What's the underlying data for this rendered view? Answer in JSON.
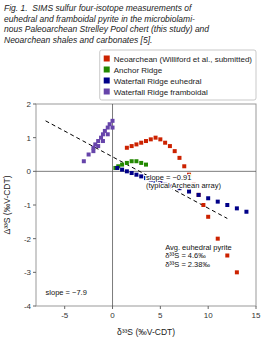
{
  "chart_data": {
    "type": "scatter",
    "title": "Fig. 1.  SIMS sulfur four-isotope measurements of\neuhedral and framboidal pyrite in the microbiolami-\nnous Paleoarchean Strelley Pool chert (this study) and\nNeoarchean shales and carbonates [5].",
    "x_label": "δ³³S (‰V-CDT)",
    "y_label": "Δ³³S (‰V-CDT)",
    "xlim": [
      -8,
      15
    ],
    "ylim": [
      -4,
      2
    ],
    "xticks": [
      -5,
      0,
      5,
      10,
      15
    ],
    "yticks": [
      -4,
      -3,
      -2,
      -1,
      0,
      1,
      2
    ],
    "grid": false,
    "legend": "upper right",
    "series": [
      {
        "type": "line",
        "line_style": "dashed",
        "color": "#000000",
        "x": [
          -7,
          12
        ],
        "values": [
          1.5,
          -1.4
        ]
      },
      {
        "name": "Neoarchean (Williford et al., submitted)",
        "color": "#cc2200",
        "marker": "square",
        "x": [
          1.5,
          2.0,
          2.5,
          3.0,
          3.5,
          4.0,
          4.5,
          5.0,
          5.5,
          6.0,
          6.5,
          7.0,
          7.5,
          8.0,
          8.5,
          9.0,
          9.5,
          10.0,
          11.0,
          12.0,
          13.0
        ],
        "values": [
          0.7,
          0.75,
          0.8,
          0.85,
          0.9,
          0.95,
          1.0,
          0.95,
          0.85,
          0.75,
          0.6,
          0.4,
          0.15,
          -0.1,
          -0.4,
          -0.7,
          -1.0,
          -1.35,
          -2.0,
          -2.5,
          -3.0
        ]
      },
      {
        "name": "Anchor Ridge",
        "color": "#228800",
        "marker": "square",
        "x": [
          0.3,
          0.6,
          1.0,
          1.5,
          2.0,
          2.5,
          3.0,
          3.5
        ],
        "values": [
          0.1,
          0.15,
          0.2,
          0.25,
          0.3,
          0.3,
          0.25,
          0.2
        ]
      },
      {
        "name": "Waterfall Ridge euhedral",
        "color": "#000088",
        "marker": "square",
        "x": [
          0.5,
          1.0,
          1.5,
          2.0,
          2.5,
          3.0,
          3.5,
          4.0,
          4.5,
          5.0,
          5.5,
          6.0,
          7.0,
          8.0,
          9.0,
          10.0,
          11.0,
          12.0,
          13.0,
          14.0
        ],
        "values": [
          0.1,
          0.05,
          0.0,
          -0.05,
          -0.1,
          -0.15,
          -0.2,
          -0.25,
          -0.3,
          -0.35,
          -0.4,
          -0.45,
          -0.5,
          -0.6,
          -0.7,
          -0.8,
          -0.9,
          -1.0,
          -1.1,
          -1.2
        ]
      },
      {
        "name": "Waterfall Ridge framboidal",
        "color": "#6644aa",
        "marker": "square",
        "x": [
          -2.0,
          -1.5,
          -1.0,
          -0.5,
          0.0,
          0.0,
          -0.5,
          -1.0,
          -1.5,
          -2.0,
          -1.8,
          -1.2,
          -0.8,
          -0.3,
          -2.5,
          -3.0
        ],
        "values": [
          0.7,
          0.9,
          1.1,
          1.3,
          1.5,
          1.3,
          1.1,
          0.9,
          0.75,
          0.6,
          0.8,
          1.0,
          1.2,
          1.4,
          0.5,
          0.3
        ]
      }
    ],
    "annotations": [
      {
        "text": "slope = −0.91\n(typical Archean array)",
        "x": 3.5,
        "y": -0.3
      },
      {
        "text": "slope = −7.9",
        "x": -7,
        "y": -3.6
      },
      {
        "text": "Avg. euhedral pyrite\nδ³³S = 4.6‰\nδ³³S = 2.38‰",
        "x": 5.5,
        "y": -2.5
      }
    ]
  }
}
